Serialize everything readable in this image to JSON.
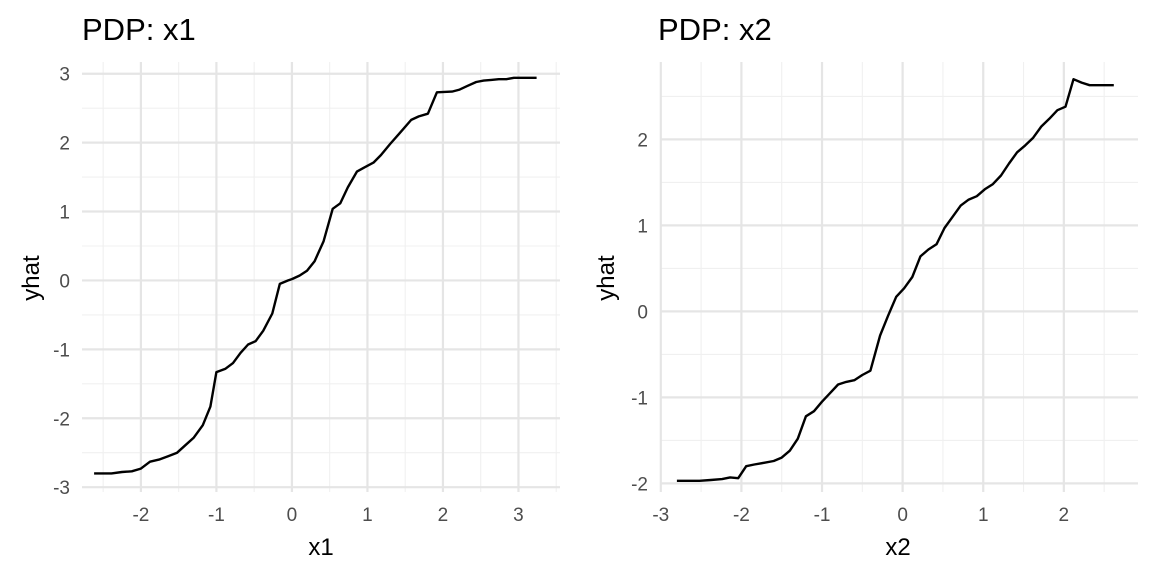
{
  "chart_data": [
    {
      "type": "line",
      "title": "PDP: x1",
      "xlabel": "x1",
      "ylabel": "yhat",
      "xlim": [
        -2.78,
        3.55
      ],
      "ylim": [
        -3.07,
        3.17
      ],
      "xticks": [
        -2,
        -1,
        0,
        1,
        2,
        3
      ],
      "yticks": [
        -3,
        -2,
        -1,
        0,
        1,
        2,
        3
      ],
      "grid": true,
      "series": [
        {
          "color": "#000000",
          "x": [
            -2.62,
            -2.51,
            -2.39,
            -2.25,
            -2.12,
            -2.0,
            -1.88,
            -1.76,
            -1.64,
            -1.52,
            -1.42,
            -1.3,
            -1.18,
            -1.08,
            -1.0,
            -0.88,
            -0.78,
            -0.68,
            -0.58,
            -0.48,
            -0.38,
            -0.26,
            -0.16,
            -0.05,
            0.0,
            0.1,
            0.2,
            0.3,
            0.42,
            0.54,
            0.64,
            0.74,
            0.86,
            0.96,
            1.08,
            1.18,
            1.3,
            1.42,
            1.58,
            1.68,
            1.8,
            1.92,
            2.12,
            2.22,
            2.32,
            2.44,
            2.54,
            2.64,
            2.74,
            2.84,
            2.94,
            3.04,
            3.24
          ],
          "y": [
            -2.8,
            -2.8,
            -2.8,
            -2.78,
            -2.77,
            -2.73,
            -2.63,
            -2.6,
            -2.55,
            -2.5,
            -2.4,
            -2.28,
            -2.1,
            -1.83,
            -1.33,
            -1.28,
            -1.2,
            -1.05,
            -0.93,
            -0.88,
            -0.73,
            -0.48,
            -0.05,
            0.0,
            0.02,
            0.07,
            0.14,
            0.28,
            0.57,
            1.04,
            1.12,
            1.35,
            1.58,
            1.64,
            1.71,
            1.82,
            1.98,
            2.13,
            2.33,
            2.38,
            2.42,
            2.73,
            2.74,
            2.77,
            2.82,
            2.88,
            2.9,
            2.91,
            2.92,
            2.92,
            2.94,
            2.94,
            2.94
          ]
        }
      ]
    },
    {
      "type": "line",
      "title": "PDP: x2",
      "xlabel": "x2",
      "ylabel": "yhat",
      "xlim": [
        -3.01,
        2.92
      ],
      "ylim": [
        -2.1,
        2.9
      ],
      "xticks": [
        -3,
        -2,
        -1,
        0,
        1,
        2
      ],
      "yticks": [
        -2,
        -1,
        0,
        1,
        2
      ],
      "grid": true,
      "series": [
        {
          "color": "#000000",
          "x": [
            -2.8,
            -2.66,
            -2.52,
            -2.38,
            -2.24,
            -2.14,
            -2.04,
            -1.94,
            -1.84,
            -1.72,
            -1.6,
            -1.5,
            -1.4,
            -1.3,
            -1.2,
            -1.1,
            -1.0,
            -0.9,
            -0.8,
            -0.7,
            -0.6,
            -0.5,
            -0.4,
            -0.28,
            -0.18,
            -0.08,
            0.02,
            0.12,
            0.22,
            0.32,
            0.42,
            0.52,
            0.62,
            0.72,
            0.82,
            0.92,
            1.02,
            1.12,
            1.22,
            1.32,
            1.42,
            1.52,
            1.62,
            1.72,
            1.82,
            1.92,
            2.02,
            2.12,
            2.22,
            2.32,
            2.42,
            2.52,
            2.62
          ],
          "y": [
            -1.97,
            -1.97,
            -1.97,
            -1.96,
            -1.95,
            -1.93,
            -1.94,
            -1.8,
            -1.78,
            -1.76,
            -1.74,
            -1.7,
            -1.62,
            -1.48,
            -1.22,
            -1.16,
            -1.05,
            -0.95,
            -0.85,
            -0.82,
            -0.8,
            -0.74,
            -0.69,
            -0.28,
            -0.05,
            0.17,
            0.27,
            0.4,
            0.64,
            0.72,
            0.78,
            0.97,
            1.1,
            1.23,
            1.3,
            1.34,
            1.42,
            1.48,
            1.58,
            1.72,
            1.85,
            1.93,
            2.02,
            2.15,
            2.24,
            2.34,
            2.38,
            2.7,
            2.66,
            2.63,
            2.63,
            2.63,
            2.63
          ]
        }
      ]
    }
  ]
}
